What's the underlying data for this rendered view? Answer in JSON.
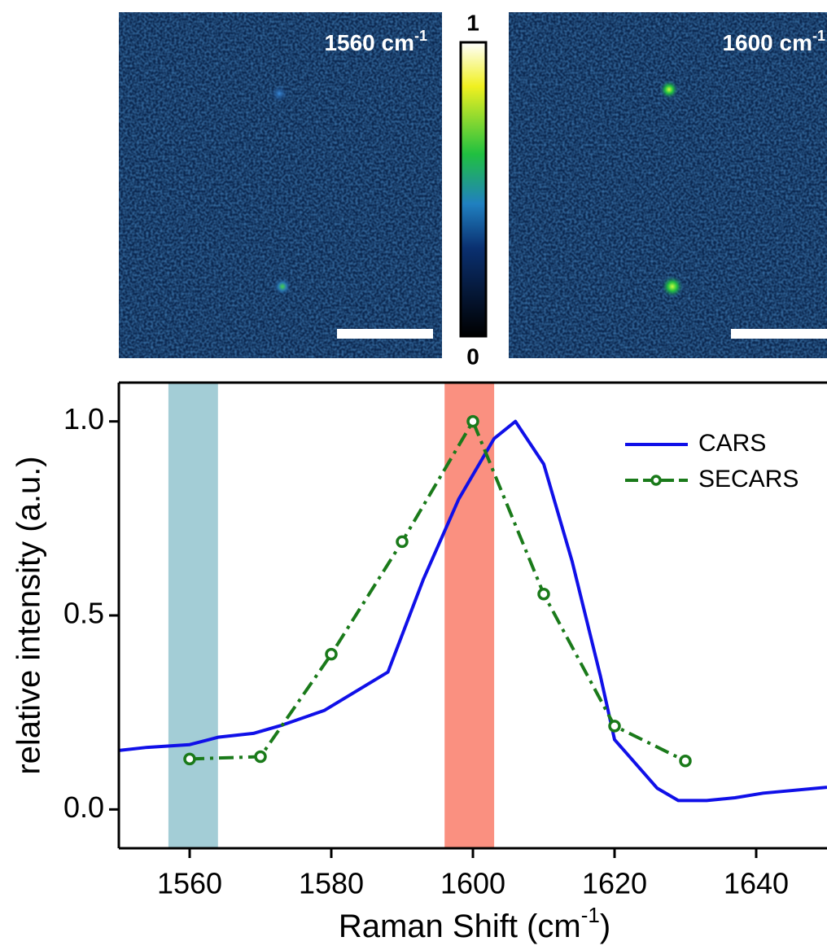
{
  "images": [
    {
      "label": {
        "text": "1560 cm",
        "sup": "-1"
      }
    },
    {
      "label": {
        "text": "1600 cm",
        "sup": "-1"
      }
    }
  ],
  "colorbar": {
    "top": "1",
    "bottom": "0"
  },
  "chart_data": {
    "type": "line",
    "xlabel": {
      "text": "Raman Shift (cm",
      "sup": "-1",
      "end": ")"
    },
    "ylabel": "relative intensity (a.u.)",
    "xlim": [
      1550,
      1650
    ],
    "ylim": [
      -0.1,
      1.1
    ],
    "xticks": [
      1560,
      1580,
      1600,
      1620,
      1640
    ],
    "yticks": [
      {
        "value": 0,
        "label": "0.0"
      },
      0.5,
      {
        "value": 1,
        "label": "1.0"
      }
    ],
    "bands": [
      {
        "from": 1557,
        "to": 1564,
        "color": "#a3cdd6"
      },
      {
        "from": 1596,
        "to": 1603,
        "color": "#fa9080"
      }
    ],
    "legend": "upper right",
    "series": [
      {
        "name": "CARS",
        "color": "#1010e8",
        "style": "solid",
        "x": [
          1550,
          1554,
          1560,
          1564,
          1569,
          1573,
          1579,
          1588,
          1593,
          1598,
          1603,
          1606,
          1610,
          1614,
          1618,
          1620,
          1626,
          1629,
          1633,
          1637,
          1641,
          1650
        ],
        "values": [
          0.152,
          0.16,
          0.167,
          0.186,
          0.196,
          0.217,
          0.255,
          0.354,
          0.593,
          0.8,
          0.956,
          1.0,
          0.89,
          0.64,
          0.344,
          0.18,
          0.055,
          0.023,
          0.023,
          0.03,
          0.042,
          0.057
        ]
      },
      {
        "name": "SECARS",
        "color": "#1a7a1a",
        "style": "dashdot",
        "markers": true,
        "x": [
          1560,
          1570,
          1580,
          1590,
          1600,
          1610,
          1620,
          1630
        ],
        "values": [
          0.13,
          0.136,
          0.4,
          0.69,
          1.0,
          0.555,
          0.215,
          0.125
        ]
      }
    ]
  }
}
